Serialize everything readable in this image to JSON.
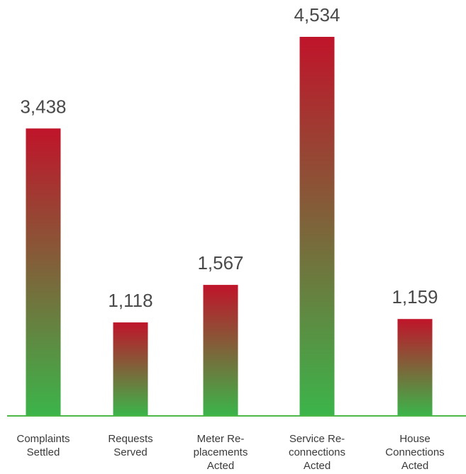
{
  "chart_data": {
    "type": "bar",
    "categories": [
      [
        "Complaints",
        "Settled"
      ],
      [
        "Requests",
        "Served"
      ],
      [
        "Meter Re-",
        "placements",
        "Acted"
      ],
      [
        "Service Re-",
        "connections",
        "Acted"
      ],
      [
        "House",
        "Connections",
        "Acted"
      ]
    ],
    "values": [
      3438,
      1118,
      1567,
      4534,
      1159
    ],
    "value_labels": [
      "3,438",
      "1,118",
      "1,567",
      "4,534",
      "1,159"
    ],
    "ylim": [
      0,
      4534
    ],
    "grid": false,
    "legend": "none",
    "colors": {
      "bar_top": "#c0142a",
      "bar_bottom": "#3bb54a",
      "baseline": "#4db848",
      "value_text": "#4a4a4a",
      "category_text": "#3a3a3a"
    }
  }
}
